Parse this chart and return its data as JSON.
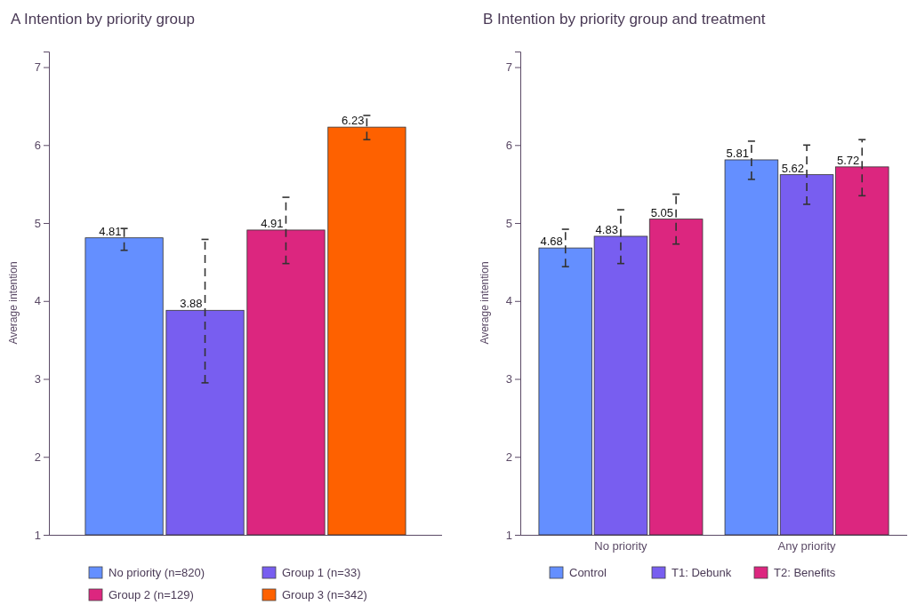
{
  "chart_data": [
    {
      "type": "bar",
      "title": "A Intention by priority group",
      "ylabel": "Average intention",
      "categories": [
        null
      ],
      "ylim": [
        1,
        7.2
      ],
      "yticks": [
        1,
        2,
        3,
        4,
        5,
        6,
        7
      ],
      "data_labels": true,
      "legend": "bottom",
      "series": [
        {
          "name": "No priority (n=820)",
          "color": "#648fff",
          "values": [
            4.81
          ],
          "errors": [
            [
              4.65,
              4.93
            ]
          ]
        },
        {
          "name": "Group 1 (n=33)",
          "color": "#785ef0",
          "values": [
            3.88
          ],
          "errors": [
            [
              2.95,
              4.79
            ]
          ]
        },
        {
          "name": "Group 2 (n=129)",
          "color": "#dc267f",
          "values": [
            4.91
          ],
          "errors": [
            [
              4.48,
              5.33
            ]
          ]
        },
        {
          "name": "Group 3 (n=342)",
          "color": "#fe6100",
          "values": [
            6.23
          ],
          "errors": [
            [
              6.07,
              6.38
            ]
          ]
        }
      ]
    },
    {
      "type": "bar",
      "title": "B Intention by priority group and treatment",
      "ylabel": "Average intention",
      "categories": [
        "No priority",
        "Any priority"
      ],
      "ylim": [
        1,
        7.2
      ],
      "yticks": [
        1,
        2,
        3,
        4,
        5,
        6,
        7
      ],
      "data_labels": true,
      "legend": "bottom",
      "series": [
        {
          "name": "Control",
          "color": "#648fff",
          "values": [
            4.68,
            5.81
          ],
          "errors": [
            [
              4.44,
              4.92
            ],
            [
              5.56,
              6.05
            ]
          ]
        },
        {
          "name": "T1: Debunk",
          "color": "#785ef0",
          "values": [
            4.83,
            5.62
          ],
          "errors": [
            [
              4.48,
              5.17
            ],
            [
              5.24,
              6.0
            ]
          ]
        },
        {
          "name": "T2: Benefits",
          "color": "#dc267f",
          "values": [
            5.05,
            5.72
          ],
          "errors": [
            [
              4.73,
              5.37
            ],
            [
              5.35,
              6.07
            ]
          ]
        }
      ]
    }
  ]
}
